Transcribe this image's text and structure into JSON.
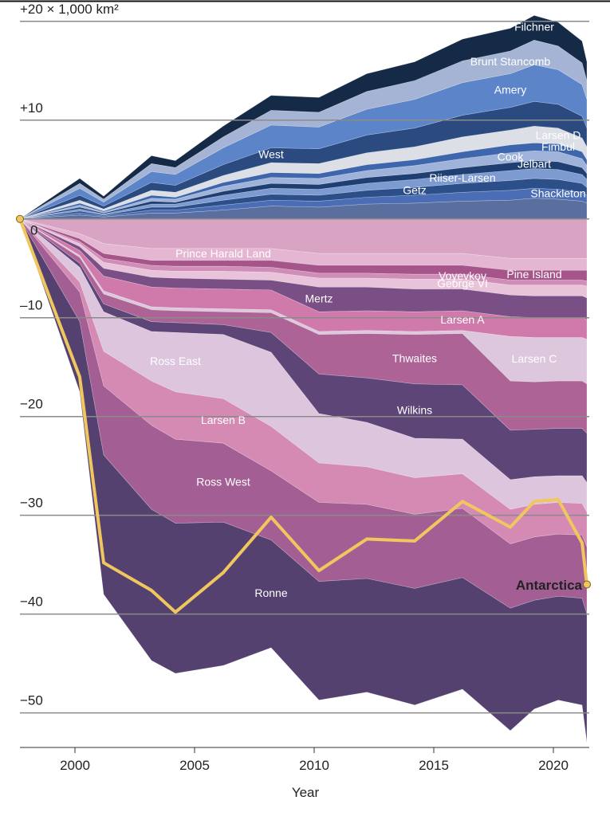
{
  "chart_data": {
    "type": "stacked_area",
    "x_label": "Year",
    "x": [
      1997.7,
      2000.2,
      2001.2,
      2003.2,
      2004.2,
      2006.2,
      2008.2,
      2010.2,
      2012.2,
      2014.2,
      2016.2,
      2018.2,
      2019.2,
      2020.2,
      2021.2,
      2021.4
    ],
    "xlim": [
      1997.6,
      2021.5
    ],
    "xticks": [
      2000,
      2005,
      2010,
      2015,
      2020
    ],
    "ylim": [
      -53.5,
      22
    ],
    "yticks": [
      {
        "value": 20,
        "label": "+20 × 1,000 km²"
      },
      {
        "value": 10,
        "label": "+10"
      },
      0,
      {
        "value": -10,
        "label": "–10"
      },
      {
        "value": -20,
        "label": "−20"
      },
      {
        "value": -30,
        "label": "−30"
      },
      {
        "value": -40,
        "label": "−40"
      },
      {
        "value": -50,
        "label": "−50"
      }
    ],
    "grid": true,
    "series": [
      {
        "color": "#5a6f9e",
        "values": [
          0,
          0.4,
          0.2,
          0.6,
          0.6,
          0.9,
          1.3,
          1.2,
          1.5,
          1.6,
          1.8,
          1.9,
          2.1,
          2.0,
          1.8,
          1.6
        ]
      },
      {
        "name": "Shackleton",
        "color": "#4a6db5",
        "values": [
          0,
          0.2,
          0.1,
          0.3,
          0.3,
          0.5,
          0.6,
          0.6,
          0.7,
          0.8,
          0.9,
          1.0,
          1.0,
          1.0,
          0.9,
          0.8
        ]
      },
      {
        "name": "Getz",
        "color": "#2c4f8a",
        "values": [
          0,
          0.2,
          0.1,
          0.3,
          0.3,
          0.5,
          0.6,
          0.6,
          0.7,
          0.8,
          0.9,
          1.0,
          1.0,
          1.0,
          0.9,
          0.8
        ]
      },
      {
        "name": "Riiser-Larsen",
        "color": "#7d9bd1",
        "values": [
          0,
          0.2,
          0.1,
          0.3,
          0.3,
          0.5,
          0.6,
          0.6,
          0.7,
          0.8,
          0.9,
          1.0,
          1.0,
          1.0,
          0.9,
          0.8
        ]
      },
      {
        "name": "Jelbart",
        "color": "#1f3f73",
        "values": [
          0,
          0.2,
          0.1,
          0.3,
          0.2,
          0.4,
          0.5,
          0.5,
          0.6,
          0.6,
          0.7,
          0.8,
          0.8,
          0.8,
          0.7,
          0.6
        ]
      },
      {
        "name": "Cook",
        "color": "#9fb3da",
        "values": [
          0,
          0.2,
          0.1,
          0.3,
          0.3,
          0.5,
          0.6,
          0.6,
          0.7,
          0.8,
          0.9,
          1.0,
          1.0,
          1.0,
          0.9,
          0.8
        ]
      },
      {
        "name": "Fimbul",
        "color": "#3e66ad",
        "values": [
          0,
          0.2,
          0.1,
          0.3,
          0.2,
          0.4,
          0.5,
          0.5,
          0.6,
          0.6,
          0.7,
          0.8,
          0.8,
          0.8,
          0.7,
          0.6
        ]
      },
      {
        "name": "Larsen D",
        "color": "#dcdfe6",
        "values": [
          0,
          0.3,
          0.2,
          0.5,
          0.5,
          0.7,
          1.0,
          1.0,
          1.2,
          1.3,
          1.5,
          1.5,
          1.7,
          1.6,
          1.4,
          1.3
        ]
      },
      {
        "name": "West",
        "color": "#2a4a80",
        "values": [
          0,
          0.5,
          0.3,
          0.8,
          0.7,
          1.1,
          1.5,
          1.5,
          1.8,
          1.9,
          2.2,
          2.3,
          2.5,
          2.4,
          2.2,
          1.9
        ]
      },
      {
        "name": "Amery",
        "color": "#5b84c9",
        "values": [
          0,
          0.7,
          0.4,
          1.1,
          1.1,
          1.7,
          2.3,
          2.2,
          2.6,
          2.9,
          3.3,
          3.4,
          3.7,
          3.5,
          3.2,
          2.9
        ]
      },
      {
        "name": "Brunt Stancomb",
        "color": "#a5b4d4",
        "values": [
          0,
          0.5,
          0.3,
          0.8,
          0.7,
          1.1,
          1.5,
          1.5,
          1.8,
          1.9,
          2.2,
          2.3,
          2.5,
          2.4,
          2.2,
          1.9
        ]
      },
      {
        "name": "Filchner",
        "color": "#152a47",
        "values": [
          0,
          0.5,
          0.3,
          0.8,
          0.7,
          1.1,
          1.5,
          1.5,
          1.8,
          1.9,
          2.2,
          2.3,
          2.5,
          2.4,
          2.2,
          1.9
        ]
      },
      {
        "color": "#d9a3c4",
        "values": [
          0,
          -1.5,
          -2.5,
          -3,
          -3,
          -3,
          -3,
          -3.5,
          -3.5,
          -3.5,
          -3.5,
          -4,
          -4,
          -4,
          -4,
          -4
        ]
      },
      {
        "name": "Prince Harald Land",
        "color": "#e4b6d2",
        "values": [
          0,
          -0.5,
          -1,
          -1.2,
          -1.2,
          -1.2,
          -1.2,
          -1.2,
          -1.2,
          -1.2,
          -1.2,
          -1.2,
          -1.2,
          -1.2,
          -1.2,
          -1.2
        ]
      },
      {
        "name": "Pine Island",
        "color": "#a5558a",
        "values": [
          0,
          -0.3,
          -0.5,
          -0.5,
          -0.6,
          -0.6,
          -0.7,
          -0.8,
          -0.8,
          -0.9,
          -0.9,
          -1,
          -1,
          -1,
          -1,
          -1.1
        ]
      },
      {
        "name": "Voyevkov",
        "color": "#cf8db7",
        "values": [
          0,
          -0.2,
          -0.4,
          -0.5,
          -0.5,
          -0.5,
          -0.5,
          -0.5,
          -0.5,
          -0.5,
          -0.5,
          -0.5,
          -0.5,
          -0.5,
          -0.5,
          -0.5
        ]
      },
      {
        "name": "George VI",
        "color": "#e9c3d9",
        "values": [
          0,
          -0.3,
          -0.6,
          -0.7,
          -0.7,
          -0.8,
          -0.8,
          -0.9,
          -0.9,
          -1,
          -1,
          -1,
          -1.1,
          -1.1,
          -1.1,
          -1.2
        ]
      },
      {
        "name": "Mertz",
        "color": "#7a4f86",
        "values": [
          0,
          -0.4,
          -0.8,
          -1,
          -1,
          -1,
          -1,
          -2.5,
          -2.4,
          -2.3,
          -2.2,
          -2.2,
          -2.2,
          -2.2,
          -2.2,
          -2.2
        ]
      },
      {
        "name": "Larsen A",
        "color": "#d07aab",
        "values": [
          0,
          -0.5,
          -1.5,
          -2,
          -2,
          -2,
          -2,
          -2,
          -2,
          -2,
          -2,
          -2,
          -2,
          -2,
          -2,
          -2
        ]
      },
      {
        "name": "Larsen C",
        "color": "#dcc7dc",
        "values": [
          0,
          -0.2,
          -0.3,
          -0.3,
          -0.3,
          -0.3,
          -0.3,
          -0.3,
          -0.3,
          -0.3,
          -0.3,
          -4.5,
          -4.5,
          -4.4,
          -4.4,
          -4.5
        ]
      },
      {
        "name": "Thwaites",
        "color": "#ad6395",
        "values": [
          0,
          -0.6,
          -1,
          -1.2,
          -1.2,
          -1.3,
          -2,
          -4,
          -4.5,
          -5,
          -5.2,
          -5,
          -4.8,
          -4.8,
          -4.8,
          -5
        ]
      },
      {
        "name": "Wilkins",
        "color": "#5e4577",
        "values": [
          0,
          -0.4,
          -0.8,
          -1,
          -1,
          -1,
          -2,
          -4,
          -4.5,
          -5.5,
          -5.5,
          -5,
          -4.8,
          -4.8,
          -4.8,
          -5
        ]
      },
      {
        "name": "Ross East",
        "color": "#dcc5dd",
        "values": [
          0,
          -1.5,
          -4,
          -5,
          -6,
          -6.5,
          -7.5,
          -5,
          -4.5,
          -4,
          -3.5,
          -3,
          -2.8,
          -2.7,
          -2.8,
          -3
        ]
      },
      {
        "name": "Larsen B",
        "color": "#d48ab3",
        "values": [
          0,
          -1,
          -3.5,
          -4.5,
          -4.8,
          -4.5,
          -4.5,
          -4,
          -3.8,
          -3.7,
          -3.5,
          -3.5,
          -3.3,
          -3.2,
          -3.2,
          -3.5
        ]
      },
      {
        "name": "Ross West",
        "color": "#a35f94",
        "values": [
          0,
          -3,
          -7,
          -8.5,
          -8.5,
          -8,
          -7,
          -8,
          -7.5,
          -7.5,
          -7,
          -6.5,
          -6.4,
          -6.3,
          -6.4,
          -6.8
        ]
      },
      {
        "name": "Ronne",
        "color": "#54416f",
        "values": [
          0,
          -7.1,
          -14.1,
          -15.3,
          -15.2,
          -14.5,
          -10.9,
          -12,
          -11.5,
          -11.8,
          -11.3,
          -12.4,
          -11,
          -10.5,
          -10.8,
          -13
        ]
      }
    ],
    "line": {
      "name": "Antarctica",
      "color": "#f0c75e",
      "values": [
        0,
        -16,
        -34.8,
        -37.6,
        -39.8,
        -35.8,
        -30.2,
        -35.6,
        -32.4,
        -32.6,
        -28.6,
        -31.2,
        -28.6,
        -28.4,
        -32.8,
        -37
      ]
    }
  }
}
